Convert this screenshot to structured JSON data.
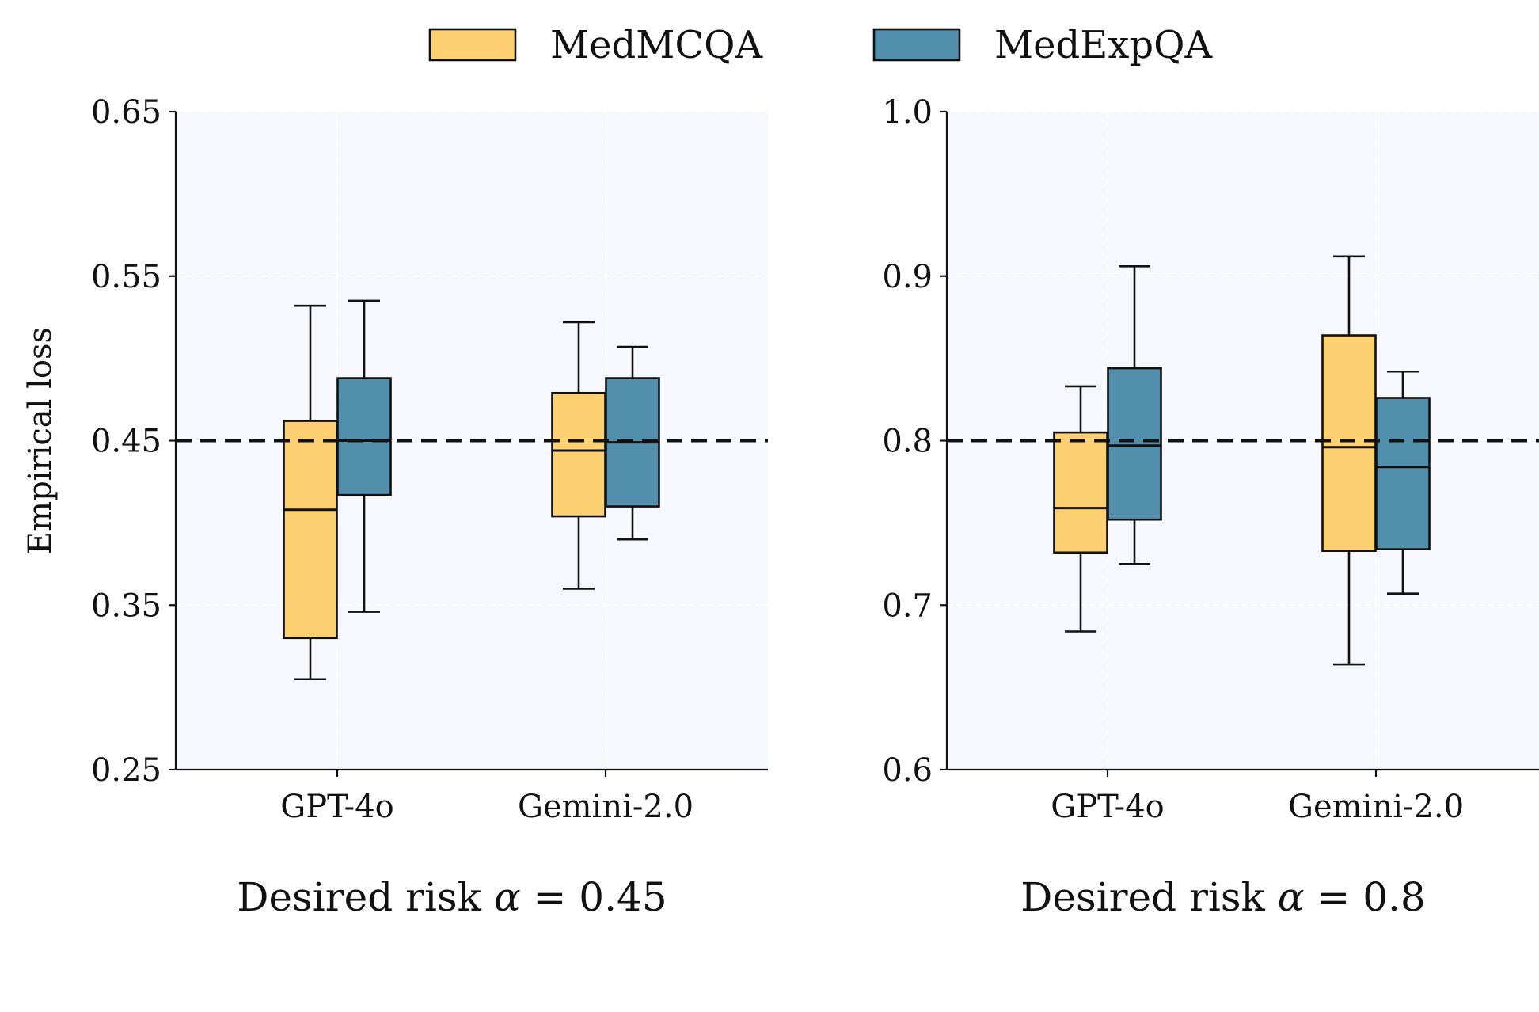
{
  "chart_data": [
    {
      "type": "box",
      "title": "",
      "subtitle_prefix": "Desired risk",
      "subtitle_symbol": "α",
      "subtitle_equals": "=",
      "subtitle_value": "0.45",
      "ylabel": "Empirical loss",
      "xlabel": "",
      "ylim": [
        0.25,
        0.65
      ],
      "yticks": [
        0.25,
        0.35,
        0.45,
        0.55,
        0.65
      ],
      "ytick_labels": [
        "0.25",
        "0.35",
        "0.45",
        "0.55",
        "0.65"
      ],
      "reference_line": 0.45,
      "categories": [
        "GPT-4o",
        "Gemini-2.0"
      ],
      "series": [
        {
          "name": "MedMCQA",
          "boxes": [
            {
              "whisker_low": 0.305,
              "q1": 0.33,
              "median": 0.408,
              "q3": 0.462,
              "whisker_high": 0.532
            },
            {
              "whisker_low": 0.36,
              "q1": 0.404,
              "median": 0.444,
              "q3": 0.479,
              "whisker_high": 0.522
            }
          ]
        },
        {
          "name": "MedExpQA",
          "boxes": [
            {
              "whisker_low": 0.346,
              "q1": 0.417,
              "median": 0.45,
              "q3": 0.488,
              "whisker_high": 0.535
            },
            {
              "whisker_low": 0.39,
              "q1": 0.41,
              "median": 0.449,
              "q3": 0.488,
              "whisker_high": 0.507
            }
          ]
        }
      ]
    },
    {
      "type": "box",
      "title": "",
      "subtitle_prefix": "Desired risk",
      "subtitle_symbol": "α",
      "subtitle_equals": "=",
      "subtitle_value": "0.8",
      "ylabel": "",
      "xlabel": "",
      "ylim": [
        0.6,
        1.0
      ],
      "yticks": [
        0.6,
        0.7,
        0.8,
        0.9,
        1.0
      ],
      "ytick_labels": [
        "0.6",
        "0.7",
        "0.8",
        "0.9",
        "1.0"
      ],
      "reference_line": 0.8,
      "categories": [
        "GPT-4o",
        "Gemini-2.0"
      ],
      "series": [
        {
          "name": "MedMCQA",
          "boxes": [
            {
              "whisker_low": 0.684,
              "q1": 0.732,
              "median": 0.759,
              "q3": 0.805,
              "whisker_high": 0.833
            },
            {
              "whisker_low": 0.664,
              "q1": 0.733,
              "median": 0.796,
              "q3": 0.864,
              "whisker_high": 0.912
            }
          ]
        },
        {
          "name": "MedExpQA",
          "boxes": [
            {
              "whisker_low": 0.725,
              "q1": 0.752,
              "median": 0.797,
              "q3": 0.844,
              "whisker_high": 0.906
            },
            {
              "whisker_low": 0.707,
              "q1": 0.734,
              "median": 0.784,
              "q3": 0.826,
              "whisker_high": 0.842
            }
          ]
        }
      ]
    }
  ],
  "legend": {
    "position": "top-center",
    "entries": [
      {
        "label": "MedMCQA",
        "color": "#fdd072"
      },
      {
        "label": "MedExpQA",
        "color": "#528fad"
      }
    ]
  },
  "colors": {
    "MedMCQA": "#fdd072",
    "MedExpQA": "#528fad",
    "plot_background": "#f7f8fd"
  }
}
